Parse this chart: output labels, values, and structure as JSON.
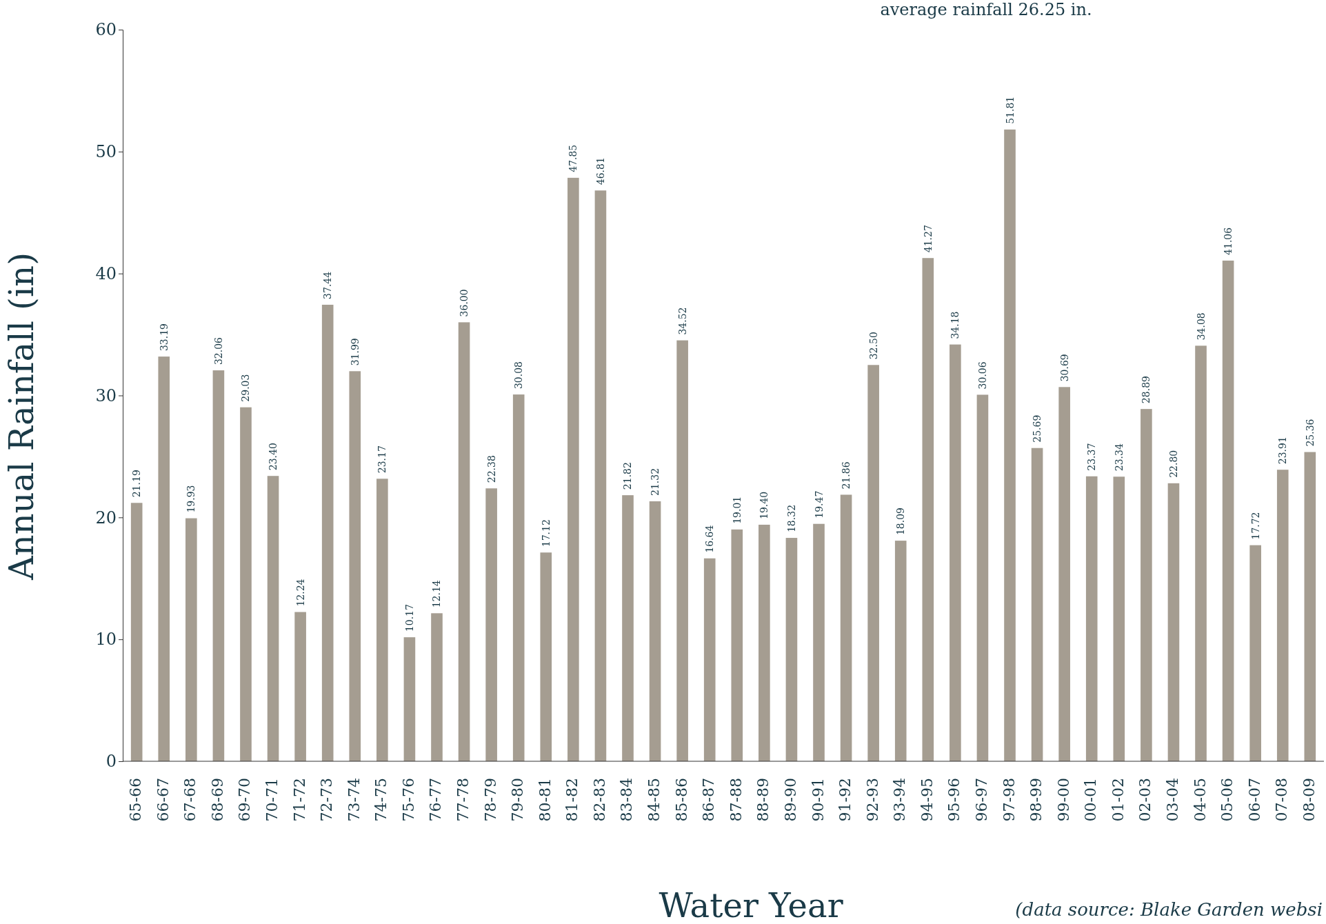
{
  "chart_data": {
    "type": "bar",
    "xlabel": "Water Year",
    "ylabel": "Annual Rainfall (in)",
    "annotations": [
      "average rainfall 26.25 in.",
      "(data source: Blake Garden websi"
    ],
    "categories": [
      "65-66",
      "66-67",
      "67-68",
      "68-69",
      "69-70",
      "70-71",
      "71-72",
      "72-73",
      "73-74",
      "74-75",
      "75-76",
      "76-77",
      "77-78",
      "78-79",
      "79-80",
      "80-81",
      "81-82",
      "82-83",
      "83-84",
      "84-85",
      "85-86",
      "86-87",
      "87-88",
      "88-89",
      "89-90",
      "90-91",
      "91-92",
      "92-93",
      "93-94",
      "94-95",
      "95-96",
      "96-97",
      "97-98",
      "98-99",
      "99-00",
      "00-01",
      "01-02",
      "02-03",
      "03-04",
      "04-05",
      "05-06",
      "06-07",
      "07-08",
      "08-09"
    ],
    "values": [
      21.19,
      33.19,
      19.93,
      32.06,
      29.03,
      23.4,
      12.24,
      37.44,
      31.99,
      23.17,
      10.17,
      12.14,
      36.0,
      22.38,
      30.08,
      17.12,
      47.85,
      46.81,
      21.82,
      21.32,
      34.52,
      16.64,
      19.01,
      19.4,
      18.32,
      19.47,
      21.86,
      32.5,
      18.09,
      41.27,
      34.18,
      30.06,
      51.81,
      25.69,
      30.69,
      23.37,
      23.34,
      28.89,
      22.8,
      34.08,
      41.06,
      17.72,
      23.91,
      25.36
    ],
    "value_labels": [
      "21.19",
      "33.19",
      "19.93",
      "32.06",
      "29.03",
      "23.40",
      "12.24",
      "37.44",
      "31.99",
      "23.17",
      "10.17",
      "12.14",
      "36.00",
      "22.38",
      "30.08",
      "17.12",
      "47.85",
      "46.81",
      "21.82",
      "21.32",
      "34.52",
      "16.64",
      "19.01",
      "19.40",
      "18.32",
      "19.47",
      "21.86",
      "32.50",
      "18.09",
      "41.27",
      "34.18",
      "30.06",
      "51.81",
      "25.69",
      "30.69",
      "23.37",
      "23.34",
      "28.89",
      "22.80",
      "34.08",
      "41.06",
      "17.72",
      "23.91",
      "25.36"
    ],
    "color": "#a59d91",
    "ylim": [
      0,
      60
    ],
    "yticks": [
      0,
      10,
      20,
      30,
      40,
      50,
      60
    ],
    "grid": false
  }
}
